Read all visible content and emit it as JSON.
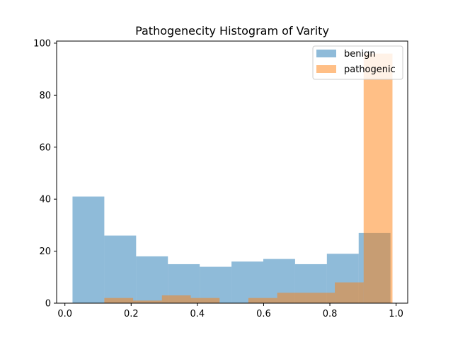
{
  "chart_data": {
    "type": "histogram",
    "title": "Pathogenecity Histogram of Varity",
    "xlabel": "",
    "ylabel": "",
    "xlim": [
      -0.025,
      1.035
    ],
    "ylim": [
      0,
      100.8
    ],
    "xticks": [
      0.0,
      0.2,
      0.4,
      0.6,
      0.8,
      1.0
    ],
    "xtick_labels": [
      "0.0",
      "0.2",
      "0.4",
      "0.6",
      "0.8",
      "1.0"
    ],
    "yticks": [
      0,
      20,
      40,
      60,
      80,
      100
    ],
    "ytick_labels": [
      "0",
      "20",
      "40",
      "60",
      "80",
      "100"
    ],
    "grid": false,
    "legend_position": "top-right",
    "series": [
      {
        "name": "benign",
        "color": "#1f77b4",
        "alpha": 0.5,
        "bin_edges": [
          0.023,
          0.119,
          0.215,
          0.311,
          0.407,
          0.503,
          0.599,
          0.695,
          0.791,
          0.887,
          0.983
        ],
        "counts": [
          41,
          26,
          18,
          15,
          14,
          16,
          17,
          15,
          19,
          27
        ]
      },
      {
        "name": "pathogenic",
        "color": "#ff7f0e",
        "alpha": 0.5,
        "bin_edges": [
          0.119,
          0.206,
          0.293,
          0.38,
          0.467,
          0.554,
          0.641,
          0.728,
          0.815,
          0.902,
          0.989
        ],
        "counts": [
          2,
          1,
          3,
          2,
          0,
          2,
          4,
          4,
          8,
          96
        ]
      }
    ]
  }
}
